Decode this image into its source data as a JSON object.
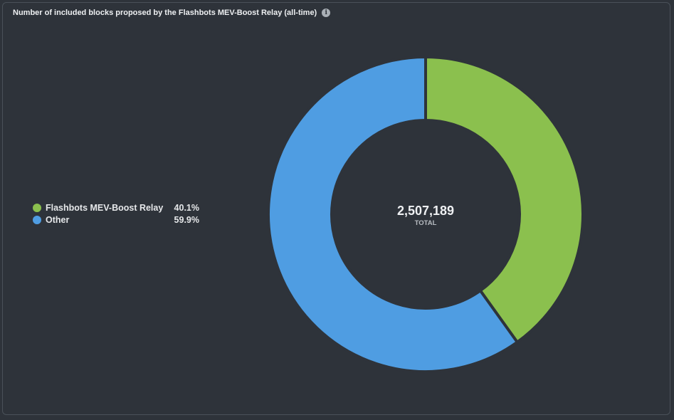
{
  "chart_data": {
    "type": "pie",
    "title": "Number of included blocks proposed by the Flashbots MEV-Boost Relay (all-time)",
    "categories": [
      "Flashbots MEV-Boost Relay",
      "Other"
    ],
    "values": [
      40.1,
      59.9
    ],
    "value_labels": [
      "40.1%",
      "59.9%"
    ],
    "colors": [
      "#8bc04e",
      "#4f9de2"
    ],
    "center_value": "2,507,189",
    "center_label": "TOTAL",
    "legend_position": "left"
  },
  "header": {
    "info_icon": "info-icon"
  }
}
